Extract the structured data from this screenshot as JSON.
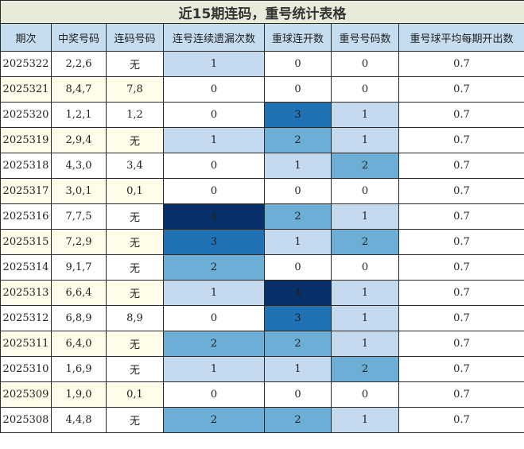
{
  "title": "近15期连码，重号统计表格",
  "headers": [
    "期次",
    "中奖号码",
    "连码号码",
    "连号连续遗漏次数",
    "重球连开数",
    "重号号码数",
    "重号球平均每期开出数"
  ],
  "rows": [
    {
      "issue": "2025322",
      "win": "2,2,6",
      "consec": "无",
      "miss": "1",
      "rep_open": "0",
      "rep_cnt": "0",
      "avg": "0.7"
    },
    {
      "issue": "2025321",
      "win": "8,4,7",
      "consec": "7,8",
      "miss": "0",
      "rep_open": "0",
      "rep_cnt": "0",
      "avg": "0.7"
    },
    {
      "issue": "2025320",
      "win": "1,2,1",
      "consec": "1,2",
      "miss": "0",
      "rep_open": "3",
      "rep_cnt": "1",
      "avg": "0.7"
    },
    {
      "issue": "2025319",
      "win": "2,9,4",
      "consec": "无",
      "miss": "1",
      "rep_open": "2",
      "rep_cnt": "1",
      "avg": "0.7"
    },
    {
      "issue": "2025318",
      "win": "4,3,0",
      "consec": "3,4",
      "miss": "0",
      "rep_open": "1",
      "rep_cnt": "2",
      "avg": "0.7"
    },
    {
      "issue": "2025317",
      "win": "3,0,1",
      "consec": "0,1",
      "miss": "0",
      "rep_open": "0",
      "rep_cnt": "0",
      "avg": "0.7"
    },
    {
      "issue": "2025316",
      "win": "7,7,5",
      "consec": "无",
      "miss": "4",
      "rep_open": "2",
      "rep_cnt": "1",
      "avg": "0.7"
    },
    {
      "issue": "2025315",
      "win": "7,2,9",
      "consec": "无",
      "miss": "3",
      "rep_open": "1",
      "rep_cnt": "2",
      "avg": "0.7"
    },
    {
      "issue": "2025314",
      "win": "9,1,7",
      "consec": "无",
      "miss": "2",
      "rep_open": "0",
      "rep_cnt": "0",
      "avg": "0.7"
    },
    {
      "issue": "2025313",
      "win": "6,6,4",
      "consec": "无",
      "miss": "1",
      "rep_open": "4",
      "rep_cnt": "1",
      "avg": "0.7"
    },
    {
      "issue": "2025312",
      "win": "6,8,9",
      "consec": "8,9",
      "miss": "0",
      "rep_open": "3",
      "rep_cnt": "1",
      "avg": "0.7"
    },
    {
      "issue": "2025311",
      "win": "6,4,0",
      "consec": "无",
      "miss": "2",
      "rep_open": "2",
      "rep_cnt": "1",
      "avg": "0.7"
    },
    {
      "issue": "2025310",
      "win": "1,6,9",
      "consec": "无",
      "miss": "1",
      "rep_open": "1",
      "rep_cnt": "2",
      "avg": "0.7"
    },
    {
      "issue": "2025309",
      "win": "1,9,0",
      "consec": "0,1",
      "miss": "0",
      "rep_open": "0",
      "rep_cnt": "0",
      "avg": "0.7"
    },
    {
      "issue": "2025308",
      "win": "4,4,8",
      "consec": "无",
      "miss": "2",
      "rep_open": "2",
      "rep_cnt": "1",
      "avg": "0.7"
    }
  ],
  "colors": {
    "title_bg": "#e6ecd9",
    "header_bg": "#c6ddf0",
    "stripe_bg": "#fffde9",
    "heat_level_0": "#ffffff",
    "heat_level_1": "#c5d9ef",
    "heat_level_2": "#6baed6",
    "heat_level_3": "#2171b5",
    "heat_level_4": "#08306b"
  }
}
